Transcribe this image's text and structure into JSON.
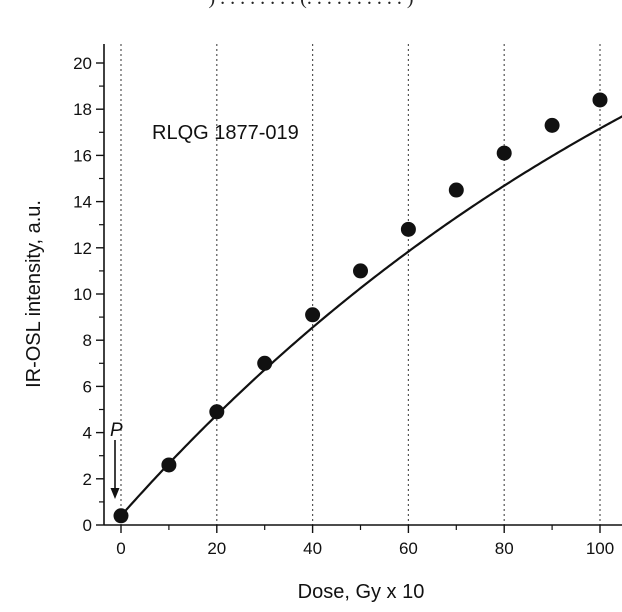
{
  "top_caption": ") . . . . . . . . (. . . . . . . . . . )",
  "chart_data": {
    "type": "scatter",
    "title": "",
    "annotation": "RLQG 1877-019",
    "marker_label": "P",
    "xlabel": "Dose, Gy x 10",
    "ylabel": "IR-OSL intensity, a.u.",
    "xlim": [
      -4,
      110
    ],
    "ylim": [
      0,
      21
    ],
    "xticks": [
      "0",
      "20",
      "40",
      "60",
      "80",
      "100"
    ],
    "yticks": [
      "0",
      "2",
      "4",
      "6",
      "8",
      "10",
      "12",
      "14",
      "16",
      "18",
      "20"
    ],
    "grid": "vertical dotted at major x ticks",
    "series": [
      {
        "points": [
          {
            "x": 0,
            "y": 0.4
          },
          {
            "x": 10,
            "y": 2.6
          },
          {
            "x": 20,
            "y": 4.9
          },
          {
            "x": 30,
            "y": 7.0
          },
          {
            "x": 40,
            "y": 9.1
          },
          {
            "x": 50,
            "y": 11.0
          },
          {
            "x": 60,
            "y": 12.8
          },
          {
            "x": 70,
            "y": 14.5
          },
          {
            "x": 80,
            "y": 16.1
          },
          {
            "x": 90,
            "y": 17.3
          },
          {
            "x": 100,
            "y": 18.4
          }
        ]
      }
    ],
    "fit_curve": {
      "y0": 0.4,
      "x0": 0,
      "ymax": 33,
      "d0": 141
    },
    "colors": {
      "line": "#111111",
      "marker": "#111111",
      "grid": "#555555"
    }
  }
}
